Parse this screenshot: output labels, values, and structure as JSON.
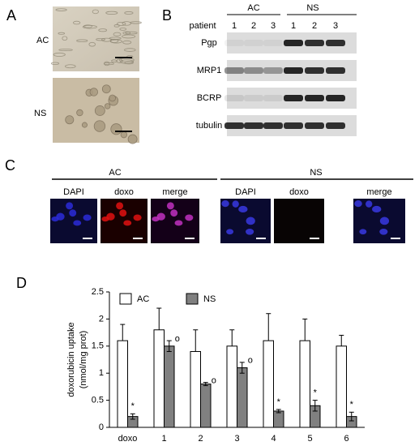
{
  "panel_labels": [
    "A",
    "B",
    "C",
    "D"
  ],
  "panel_a": {
    "rows": [
      "AC",
      "NS"
    ]
  },
  "panel_b": {
    "groups": [
      "AC",
      "NS"
    ],
    "row_header": "patient",
    "lanes": [
      "1",
      "2",
      "3",
      "1",
      "2",
      "3"
    ],
    "bands": [
      "Pgp",
      "MRP1",
      "BCRP",
      "tubulin"
    ]
  },
  "panel_c": {
    "groups": [
      "AC",
      "NS"
    ],
    "channels": [
      "DAPI",
      "doxo",
      "merge",
      "DAPI",
      "doxo",
      "merge"
    ]
  },
  "chart_data": {
    "type": "bar",
    "ylabel": [
      "doxorubicin uptake",
      "(nmol/mg prot)"
    ],
    "categories": [
      "doxo",
      "1",
      "2",
      "3",
      "4",
      "5",
      "6"
    ],
    "series": [
      {
        "name": "AC",
        "color": "#ffffff",
        "values": [
          1.6,
          1.8,
          1.4,
          1.5,
          1.6,
          1.6,
          1.5
        ],
        "errors": [
          0.3,
          0.4,
          0.4,
          0.3,
          0.5,
          0.4,
          0.2
        ]
      },
      {
        "name": "NS",
        "color": "#808080",
        "values": [
          0.2,
          1.5,
          0.8,
          1.1,
          0.3,
          0.4,
          0.2
        ],
        "errors": [
          0.05,
          0.1,
          0.03,
          0.1,
          0.03,
          0.1,
          0.08
        ],
        "value_annotations": [
          "*",
          "o",
          "o",
          "o",
          "*",
          "*",
          "*"
        ]
      }
    ],
    "ylim": [
      0,
      2.5
    ],
    "yticks": [
      0,
      0.5,
      1,
      1.5,
      2,
      2.5
    ]
  }
}
